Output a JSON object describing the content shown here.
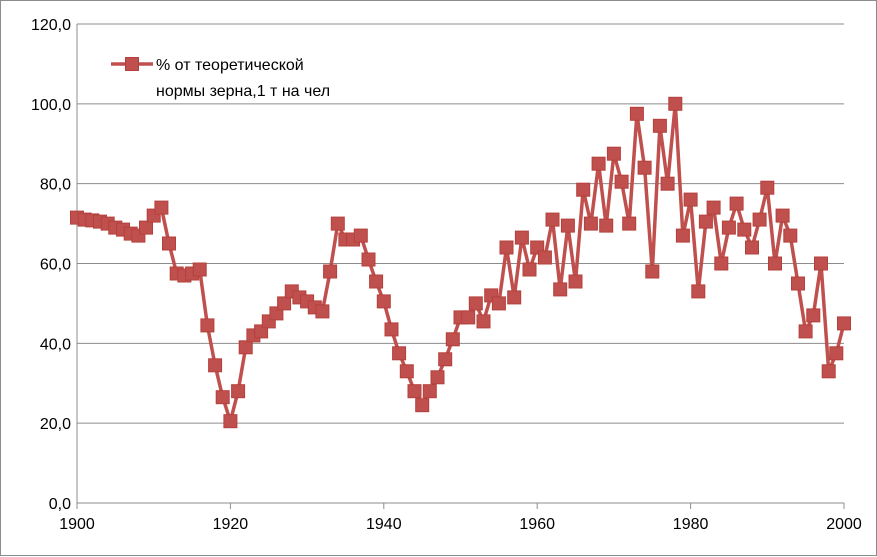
{
  "chart_data": {
    "type": "line",
    "series": [
      {
        "name": "% от теоретической нормы зерна,1 т на чел",
        "name_lines": [
          "% от теоретической",
          "нормы зерна,1 т на чел"
        ],
        "color": "#c0504d",
        "x": [
          1900,
          1901,
          1902,
          1903,
          1904,
          1905,
          1906,
          1907,
          1908,
          1909,
          1910,
          1911,
          1912,
          1913,
          1914,
          1915,
          1916,
          1917,
          1918,
          1919,
          1920,
          1921,
          1922,
          1923,
          1924,
          1925,
          1926,
          1927,
          1928,
          1929,
          1930,
          1931,
          1932,
          1933,
          1934,
          1935,
          1936,
          1937,
          1938,
          1939,
          1940,
          1941,
          1942,
          1943,
          1944,
          1945,
          1946,
          1947,
          1948,
          1949,
          1950,
          1951,
          1952,
          1953,
          1954,
          1955,
          1956,
          1957,
          1958,
          1959,
          1960,
          1961,
          1962,
          1963,
          1964,
          1965,
          1966,
          1967,
          1968,
          1969,
          1970,
          1971,
          1972,
          1973,
          1974,
          1975,
          1976,
          1977,
          1978,
          1979,
          1980,
          1981,
          1982,
          1983,
          1984,
          1985,
          1986,
          1987,
          1988,
          1989,
          1990,
          1991,
          1992,
          1993,
          1994,
          1995,
          1996,
          1997,
          1998,
          1999,
          2000
        ],
        "values": [
          71.5,
          71,
          70.8,
          70.5,
          70,
          69,
          68.5,
          67.5,
          67,
          69,
          72,
          74,
          65,
          57.5,
          57,
          57.5,
          58.5,
          44.5,
          34.5,
          26.5,
          20.5,
          28,
          39,
          42,
          43,
          45.5,
          47.5,
          50,
          53,
          51.5,
          50.5,
          49,
          48,
          58,
          70,
          66,
          66,
          67,
          61,
          55.5,
          50.5,
          43.5,
          37.5,
          33,
          28,
          24.5,
          28,
          31.5,
          36,
          41,
          46.5,
          46.5,
          50,
          45.5,
          52,
          50,
          64,
          51.5,
          66.5,
          58.5,
          64,
          61.5,
          71,
          53.5,
          69.5,
          55.5,
          78.5,
          70,
          85,
          69.5,
          87.5,
          80.5,
          70,
          97.5,
          84,
          58,
          94.5,
          80,
          100,
          67,
          76,
          53,
          70.5,
          74,
          60,
          69,
          75,
          68.5,
          64,
          71,
          79,
          60,
          72,
          67,
          55,
          43,
          47,
          60,
          33,
          37.5,
          45
        ]
      }
    ],
    "xlim": [
      1900,
      2000
    ],
    "ylim": [
      0,
      120
    ],
    "x_ticks": [
      1900,
      1920,
      1940,
      1960,
      1980,
      2000
    ],
    "y_ticks": [
      0,
      20,
      40,
      60,
      80,
      100,
      120
    ],
    "y_tick_labels": [
      "0,0",
      "20,0",
      "40,0",
      "60,0",
      "80,0",
      "100,0",
      "120,0"
    ],
    "grid": "horizontal",
    "legend_position": "top-left",
    "xlabel": "",
    "ylabel": "",
    "title": ""
  }
}
